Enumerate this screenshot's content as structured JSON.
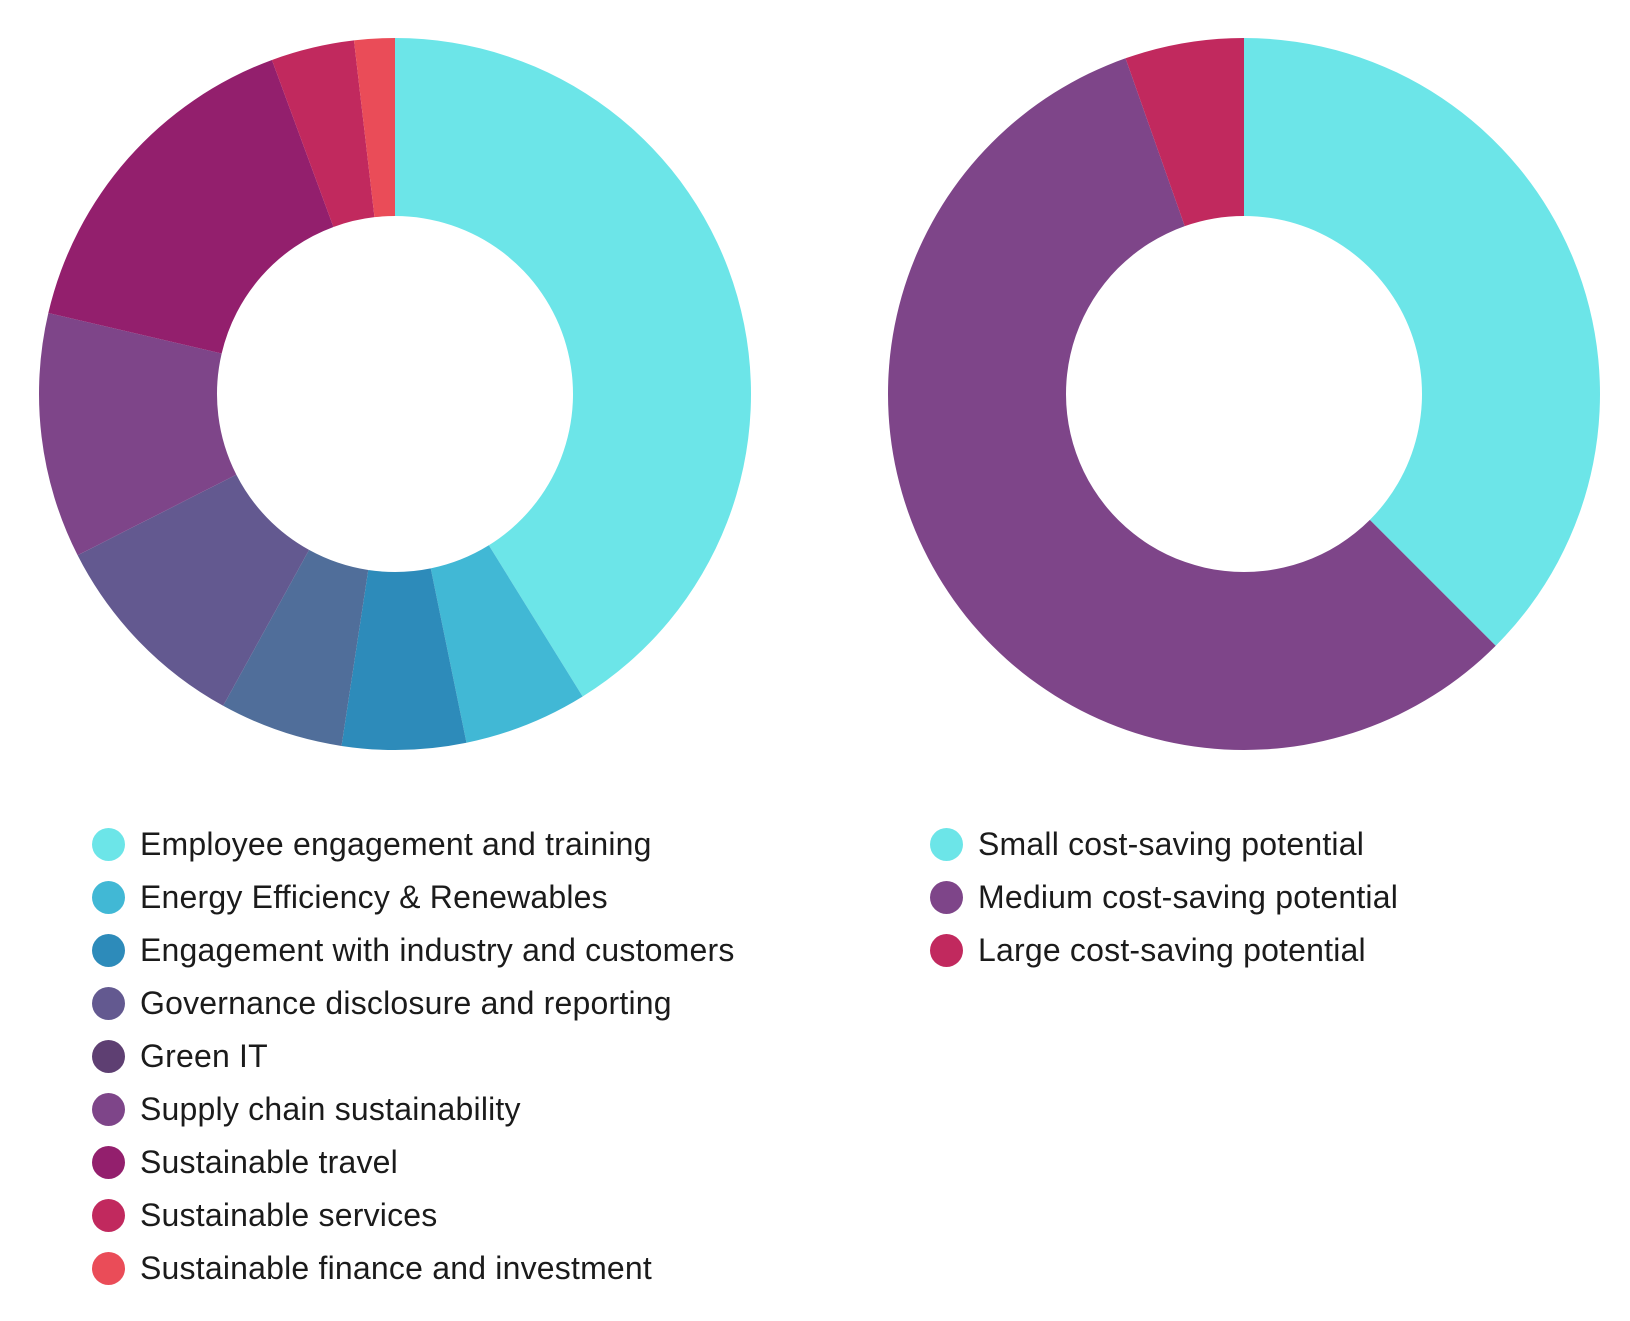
{
  "chart_data": [
    {
      "type": "pie",
      "donut": true,
      "categories": [
        "Employee engagement and training",
        "Energy Efficiency & Renewables",
        "Engagement with industry and customers",
        "Governance disclosure and reporting",
        "Green IT",
        "Supply chain sustainability",
        "Sustainable travel",
        "Sustainable services",
        "Sustainable finance and investment"
      ],
      "values": [
        40.3,
        5.5,
        5.5,
        5.5,
        9.3,
        10.9,
        15.4,
        3.7,
        1.8
      ],
      "colors": [
        "#6ce5e8",
        "#41b8d5",
        "#2d8bba",
        "#506e9a",
        "#635990",
        "#7e4589",
        "#931f6d",
        "#c1295e",
        "#ea4c58"
      ],
      "legend_colors": [
        "#6ce5e8",
        "#41b8d5",
        "#2d8bba",
        "#635990",
        "#5e3f72",
        "#7e4589",
        "#931f6d",
        "#c1295e",
        "#ea4c58"
      ],
      "legend": "bottom"
    },
    {
      "type": "pie",
      "donut": true,
      "categories": [
        "Small cost-saving potential",
        "Medium cost-saving potential",
        "Large cost-saving potential"
      ],
      "values": [
        37.5,
        57.1,
        5.4
      ],
      "colors": [
        "#6ce5e8",
        "#7e4589",
        "#c1295e"
      ],
      "legend_colors": [
        "#6ce5e8",
        "#7e4589",
        "#c1295e"
      ],
      "legend": "bottom"
    }
  ]
}
